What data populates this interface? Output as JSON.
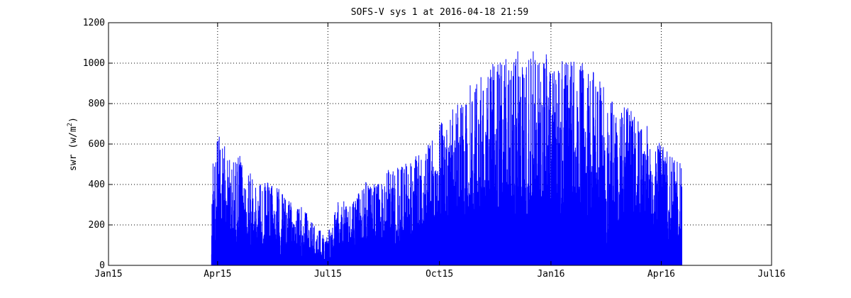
{
  "chart_data": {
    "type": "line",
    "title": "SOFS-V sys 1 at 2016-04-18 21:59",
    "xlabel": "",
    "ylabel": "swr (w/m",
    "ylabel_sup": "2",
    "ylabel_close": ")",
    "series_color": "#0000ff",
    "grid": true,
    "grid_style": "dotted",
    "x_ticks": [
      "Jan15",
      "Apr15",
      "Jul15",
      "Oct15",
      "Jan16",
      "Apr16",
      "Jul16"
    ],
    "x_tick_dates": [
      "2015-01-01",
      "2015-04-01",
      "2015-07-01",
      "2015-10-01",
      "2016-01-01",
      "2016-04-01",
      "2016-07-01"
    ],
    "xlim": [
      "2015-01-01",
      "2016-07-01"
    ],
    "y_ticks": [
      0,
      200,
      400,
      600,
      800,
      1000,
      1200
    ],
    "ylim": [
      0,
      1200
    ],
    "series": [
      {
        "values_note_units": "w/m2",
        "start_date": "2015-03-27",
        "end_date": "2016-04-18",
        "daily_peak_max": [
          [
            "2015-03-27",
            350
          ],
          [
            "2015-03-29",
            665
          ],
          [
            "2015-04-01",
            655
          ],
          [
            "2015-04-05",
            620
          ],
          [
            "2015-04-10",
            560
          ],
          [
            "2015-04-15",
            500
          ],
          [
            "2015-04-20",
            575
          ],
          [
            "2015-04-25",
            510
          ],
          [
            "2015-05-01",
            430
          ],
          [
            "2015-05-10",
            420
          ],
          [
            "2015-05-20",
            395
          ],
          [
            "2015-06-01",
            310
          ],
          [
            "2015-06-10",
            290
          ],
          [
            "2015-06-20",
            205
          ],
          [
            "2015-07-01",
            160
          ],
          [
            "2015-07-10",
            330
          ],
          [
            "2015-07-20",
            300
          ],
          [
            "2015-08-01",
            420
          ],
          [
            "2015-08-10",
            400
          ],
          [
            "2015-08-20",
            480
          ],
          [
            "2015-09-01",
            500
          ],
          [
            "2015-09-15",
            560
          ],
          [
            "2015-10-01",
            700
          ],
          [
            "2015-10-15",
            800
          ],
          [
            "2015-11-01",
            940
          ],
          [
            "2015-11-15",
            1005
          ],
          [
            "2015-12-01",
            1060
          ],
          [
            "2015-12-20",
            1075
          ],
          [
            "2016-01-01",
            1050
          ],
          [
            "2016-01-15",
            1020
          ],
          [
            "2016-02-01",
            990
          ],
          [
            "2016-02-15",
            875
          ],
          [
            "2016-03-01",
            790
          ],
          [
            "2016-03-15",
            740
          ],
          [
            "2016-04-01",
            600
          ],
          [
            "2016-04-10",
            540
          ],
          [
            "2016-04-18",
            500
          ]
        ]
      }
    ]
  }
}
